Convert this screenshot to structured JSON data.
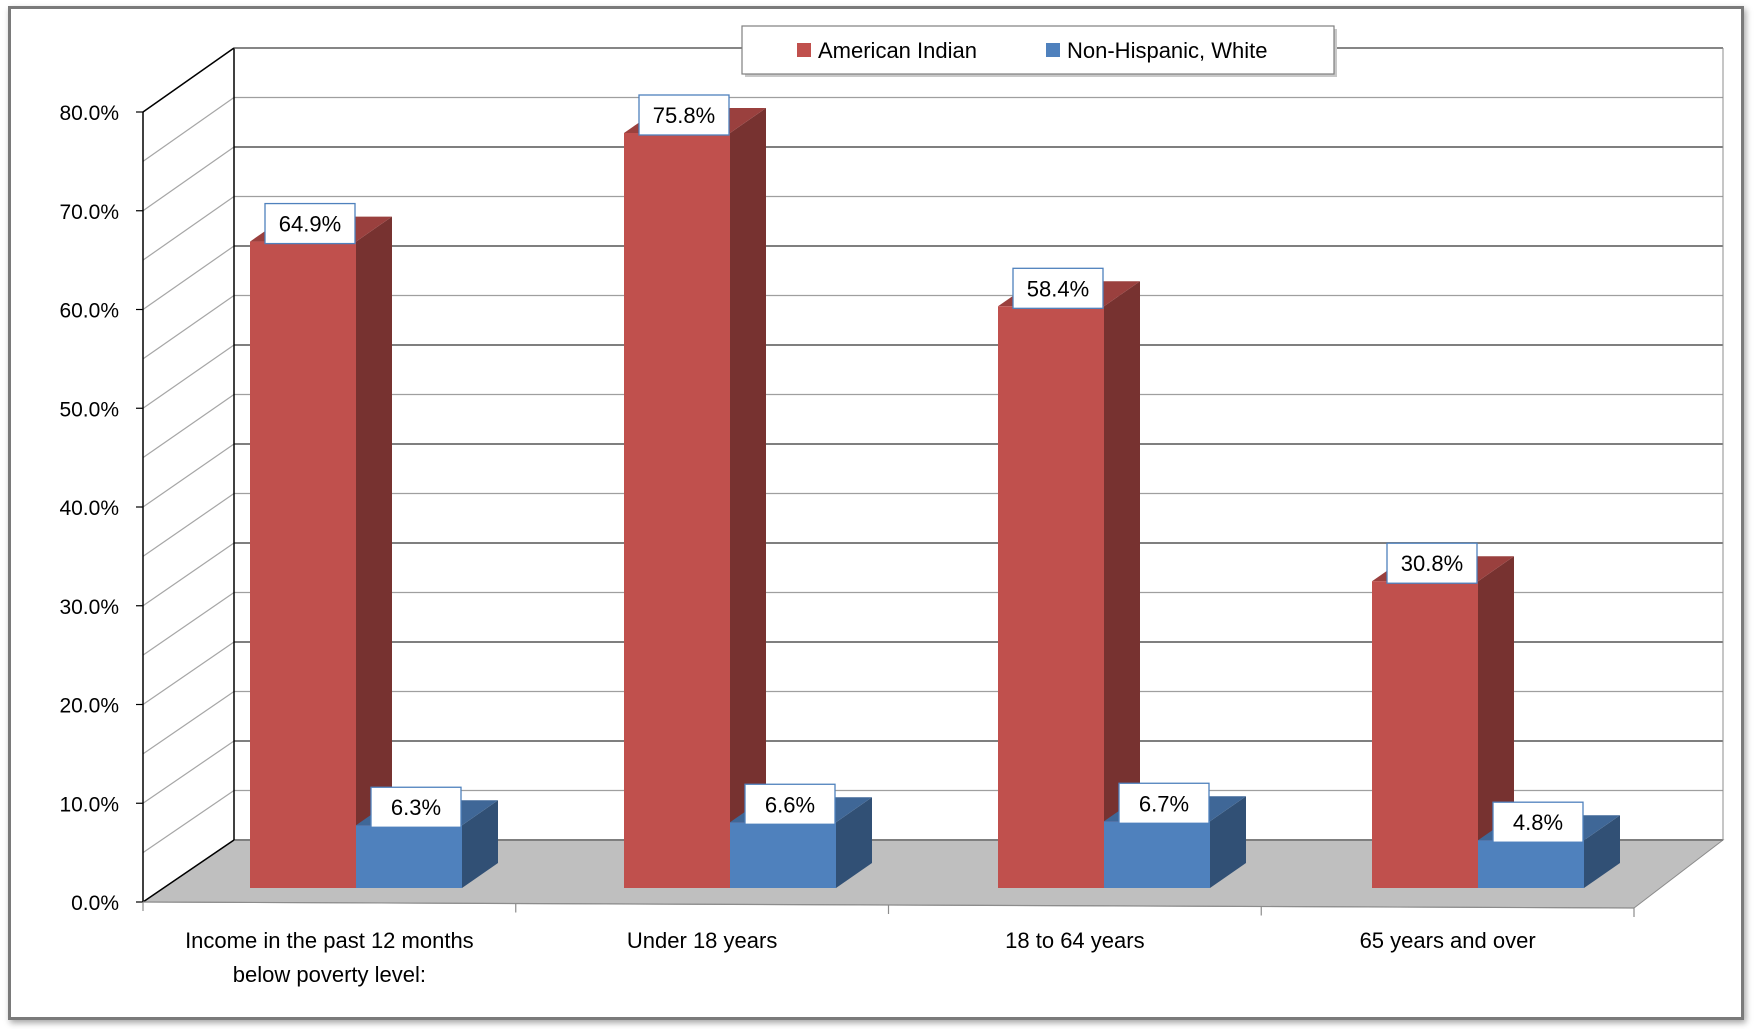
{
  "chart_data": {
    "type": "bar",
    "categories": [
      [
        "Income in the past 12 months",
        "below poverty level:"
      ],
      [
        "Under 18 years"
      ],
      [
        "18 to 64 years"
      ],
      [
        "65 years and over"
      ]
    ],
    "series": [
      {
        "name": "American Indian",
        "color": "#C0504D",
        "values": [
          64.9,
          75.8,
          58.4,
          30.8
        ],
        "labels": [
          "64.9%",
          "75.8%",
          "58.4%",
          "30.8%"
        ]
      },
      {
        "name": "Non-Hispanic, White",
        "color": "#4F81BD",
        "values": [
          6.3,
          6.6,
          6.7,
          4.8
        ],
        "labels": [
          "6.3%",
          "6.6%",
          "6.7%",
          "4.8%"
        ]
      }
    ],
    "yticks": [
      "0.0%",
      "10.0%",
      "20.0%",
      "30.0%",
      "40.0%",
      "50.0%",
      "60.0%",
      "70.0%",
      "80.0%"
    ],
    "ylim": [
      0,
      80
    ],
    "grid": true,
    "style": "3d-column",
    "legend_position": "top"
  }
}
